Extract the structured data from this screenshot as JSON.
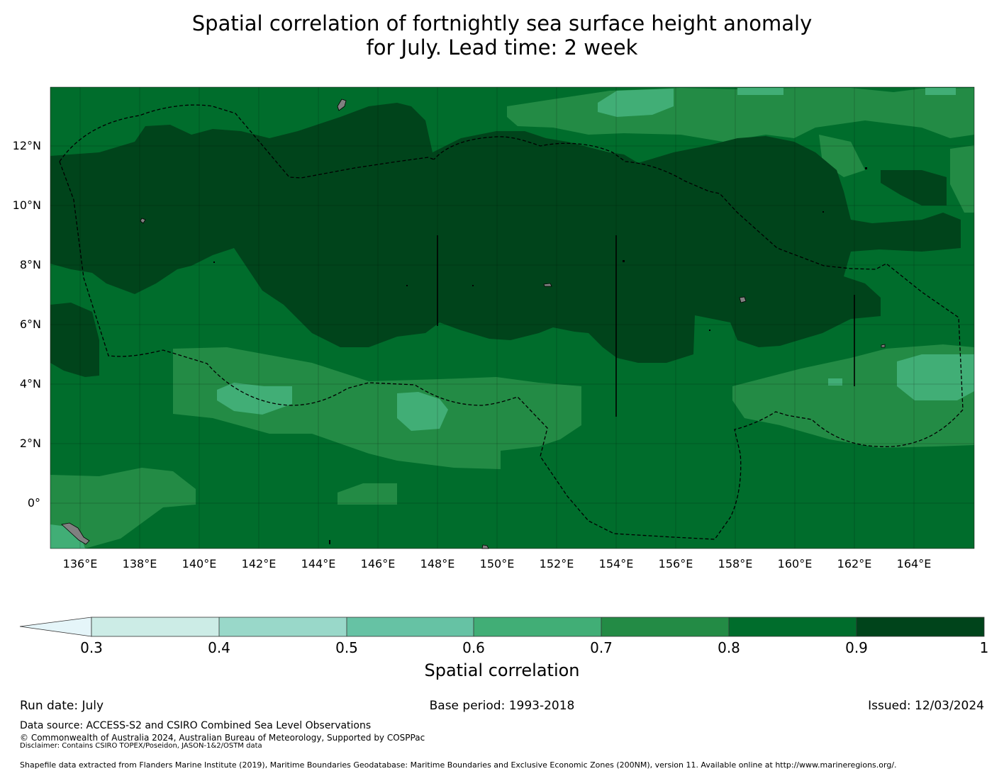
{
  "title": {
    "line1": "Spatial correlation of fortnightly sea surface height anomaly",
    "line2": "for July. Lead time: 2 week"
  },
  "map": {
    "lat_ticks": [
      "12°N",
      "10°N",
      "8°N",
      "6°N",
      "4°N",
      "2°N",
      "0°"
    ],
    "lon_ticks": [
      "136°E",
      "138°E",
      "140°E",
      "142°E",
      "144°E",
      "146°E",
      "148°E",
      "150°E",
      "152°E",
      "154°E",
      "156°E",
      "158°E",
      "160°E",
      "162°E",
      "164°E"
    ],
    "extent": {
      "lon_min": 135,
      "lon_max": 166,
      "lat_min": -1.5,
      "lat_max": 14
    },
    "dominant_correlation_band": "0.8-0.9",
    "land_color": "#808080",
    "boundary_style": "dashed black EEZ outline"
  },
  "colorbar": {
    "label": "Spatial correlation",
    "tick_labels": [
      "0.3",
      "0.4",
      "0.5",
      "0.6",
      "0.7",
      "0.8",
      "0.9",
      "1"
    ],
    "colors": [
      "#ccece6",
      "#99d8c9",
      "#66c2a4",
      "#41ae76",
      "#238b45",
      "#006d2c",
      "#00441b"
    ],
    "under_color": "#e5f5f9",
    "extend": "min"
  },
  "footer": {
    "run_date": "Run date: July",
    "base_period": "Base period: 1993-2018",
    "issued": "Issued: 12/03/2024",
    "data_source": "Data source: ACCESS-S2 and CSIRO Combined Sea Level Observations",
    "copyright": "© Commonwealth of Australia 2024, Australian Bureau of Meteorology, Supported by COSPPac",
    "disclaimer": "Disclaimer: Contains CSIRO TOPEX/Poseidon, JASON-1&2/OSTM data",
    "shapefile": "Shapefile data extracted from Flanders Marine Institute (2019), Maritime Boundaries Geodatabase: Maritime Boundaries and Exclusive Economic Zones (200NM), version 11. Available online at http://www.marineregions.org/."
  }
}
